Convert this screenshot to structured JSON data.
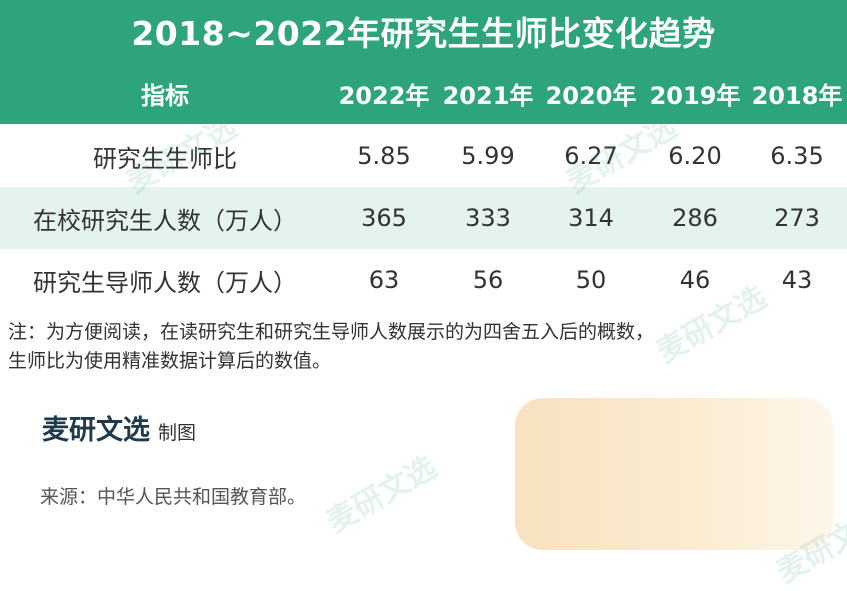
{
  "title": "2018~2022年研究生生师比变化趋势",
  "table": {
    "header": [
      "指标",
      "2022年",
      "2021年",
      "2020年",
      "2019年",
      "2018年"
    ],
    "rows": [
      {
        "label": "研究生生师比",
        "values": [
          "5.85",
          "5.99",
          "6.27",
          "6.20",
          "6.35"
        ]
      },
      {
        "label": "在校研究生人数（万人）",
        "values": [
          "365",
          "333",
          "314",
          "286",
          "273"
        ]
      },
      {
        "label": "研究生导师人数（万人）",
        "values": [
          "63",
          "56",
          "50",
          "46",
          "43"
        ]
      }
    ]
  },
  "note": [
    "注：为方便阅读，在读研究生和研究生导师人数展示的为四舍五入后的概数，",
    "生师比为使用精准数据计算后的数值。"
  ],
  "brand": {
    "name": "麦研文选",
    "suffix": "制图"
  },
  "source": "来源：中华人民共和国教育部。",
  "watermark": "麦研文选",
  "colors": {
    "header_bg": "#2da47a",
    "stripe_bg": "#e4f4ed",
    "brand_text": "#1f3a4d"
  }
}
